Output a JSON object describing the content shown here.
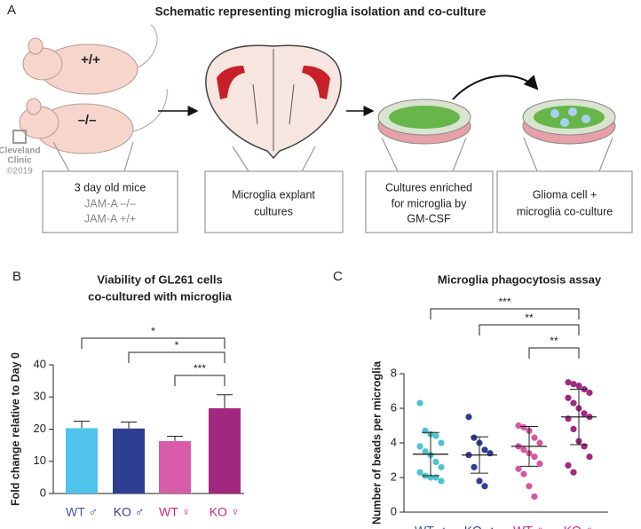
{
  "panel_a": {
    "letter": "A",
    "title": "Schematic representing microglia isolation and co-culture",
    "mouse_labels": [
      "+/+",
      "–/–"
    ],
    "logo": [
      "Cleveland",
      "Clinic",
      "©2019"
    ],
    "boxes": [
      {
        "lines": [
          "3 day old mice",
          "JAM-A –/–",
          "JAM-A +/+"
        ]
      },
      {
        "lines": [
          "Microglia explant",
          "cultures"
        ]
      },
      {
        "lines": [
          "Cultures enriched",
          "for microglia by",
          "GM-CSF"
        ]
      },
      {
        "lines": [
          "Glioma cell +",
          "microglia co-culture"
        ]
      }
    ]
  },
  "chart_data": [
    {
      "type": "bar",
      "letter": "B",
      "title": [
        "Viability of GL261 cells",
        "co-cultured with microglia"
      ],
      "y_label": "Fold change relative to Day 0",
      "categories": [
        "WT ♂",
        "KO ♂",
        "WT ♀",
        "KO ♀"
      ],
      "category_colors": [
        "#3f58a8",
        "#2e3f93",
        "#c8287e",
        "#c8287e"
      ],
      "values": [
        20.3,
        20.2,
        16.3,
        26.5
      ],
      "errors": [
        2.2,
        2.0,
        1.5,
        4.2
      ],
      "colors": [
        "#4fc3ea",
        "#2e3f93",
        "#d85ca8",
        "#a2287f"
      ],
      "ylim": [
        0,
        40
      ],
      "yticks": [
        0,
        10,
        20,
        30,
        40
      ],
      "significance": [
        {
          "from": "WT ♂",
          "to": "KO ♀",
          "label": "*"
        },
        {
          "from": "KO ♂",
          "to": "KO ♀",
          "label": "*"
        },
        {
          "from": "WT ♀",
          "to": "KO ♀",
          "label": "***"
        }
      ]
    },
    {
      "type": "strip",
      "letter": "C",
      "title": [
        "Microglia phagocytosis assay"
      ],
      "y_label": "Number of beads per microglia",
      "category_colors": [
        "#3f58a8",
        "#2e3f93",
        "#c8287e",
        "#c8287e"
      ],
      "series": [
        {
          "name": "WT ♂",
          "color": "#4fc3d0",
          "values": [
            6.3,
            4.7,
            4.5,
            4.4,
            4.0,
            3.8,
            3.5,
            3.3,
            2.9,
            2.6,
            2.3,
            2.1,
            2.0,
            2.0,
            1.8
          ],
          "mean": 3.35,
          "sd": 1.25
        },
        {
          "name": "KO ♂",
          "color": "#2e3f93",
          "values": [
            5.5,
            4.3,
            4.0,
            3.6,
            3.4,
            3.3,
            2.6,
            1.8,
            1.5
          ],
          "mean": 3.3,
          "sd": 1.05
        },
        {
          "name": "WT ♀",
          "color": "#d6579f",
          "values": [
            5.0,
            4.9,
            4.7,
            4.3,
            4.0,
            3.8,
            3.6,
            3.4,
            3.2,
            2.8,
            2.5,
            2.2,
            1.5,
            0.9
          ],
          "mean": 3.8,
          "sd": 1.15
        },
        {
          "name": "KO ♀",
          "color": "#a02a7f",
          "values": [
            7.5,
            7.4,
            7.3,
            7.1,
            6.9,
            6.6,
            6.3,
            6.0,
            5.7,
            5.5,
            5.4,
            4.8,
            4.1,
            3.8,
            3.2,
            2.7,
            2.3
          ],
          "mean": 5.5,
          "sd": 1.6
        }
      ],
      "ylim": [
        0,
        8
      ],
      "yticks": [
        0,
        2,
        4,
        6,
        8
      ],
      "significance": [
        {
          "from": "WT ♂",
          "to": "KO ♀",
          "label": "***"
        },
        {
          "from": "KO ♂",
          "to": "KO ♀",
          "label": "**"
        },
        {
          "from": "WT ♀",
          "to": "KO ♀",
          "label": "**"
        }
      ]
    }
  ]
}
